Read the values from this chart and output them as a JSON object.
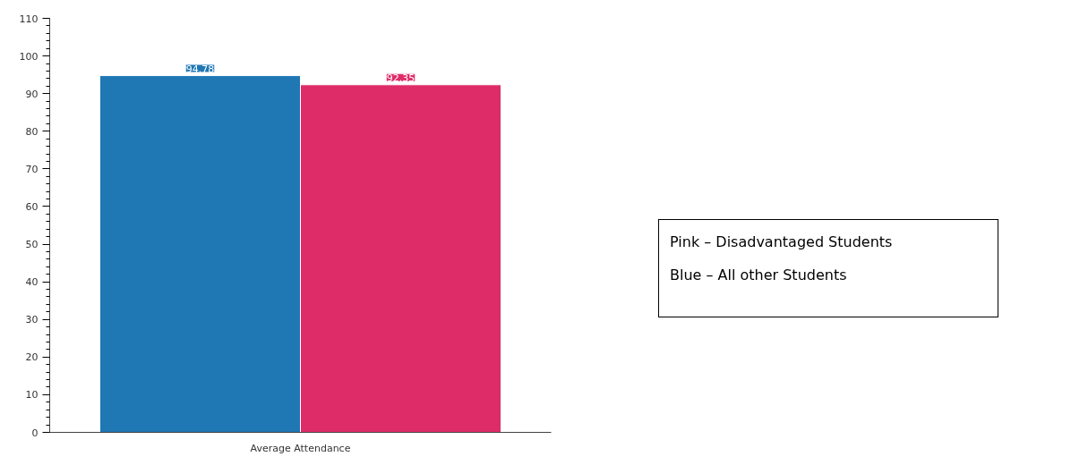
{
  "chart_data": {
    "type": "bar",
    "categories": [
      "Average Attendance"
    ],
    "series": [
      {
        "color": "#1f77b4",
        "values": [
          94.78
        ]
      },
      {
        "color": "#de2c68",
        "values": [
          92.35
        ]
      }
    ],
    "ylim": [
      0,
      110
    ],
    "yticks": [
      0,
      10,
      20,
      30,
      40,
      50,
      60,
      70,
      80,
      90,
      100,
      110
    ],
    "grid": false,
    "data_labels": true,
    "annotations": [
      "Pink – Disadvantaged Students",
      "Blue – All other Students"
    ]
  }
}
